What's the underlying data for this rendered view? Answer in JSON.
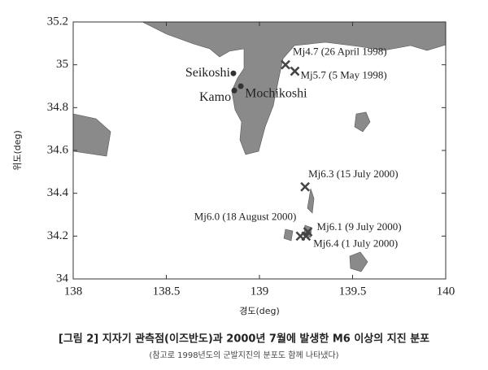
{
  "chart_data": {
    "type": "scatter",
    "title": "[그림 2] 지자기 관측점(이즈반도)과 2000년 7월에 발생한 M6 이상의 지진 분포",
    "subtitle": "(참고로 1998년도의 군발지진의 분포도 함께 나타냈다)",
    "xlabel": "경도(deg)",
    "ylabel": "위도(deg)",
    "xlim": [
      138,
      140
    ],
    "ylim": [
      34,
      35.2
    ],
    "xticks": [
      138,
      138.5,
      139,
      139.5,
      140
    ],
    "yticks": [
      34,
      34.2,
      34.4,
      34.6,
      34.8,
      35,
      35.2
    ],
    "points": [
      {
        "label": "Seikoshi",
        "x": 138.86,
        "y": 34.96,
        "marker": "dot"
      },
      {
        "label": "Kamo",
        "x": 138.865,
        "y": 34.88,
        "marker": "dot"
      },
      {
        "label": "Mochikoshi",
        "x": 138.9,
        "y": 34.9,
        "marker": "dot"
      },
      {
        "label": "Mj4.7  (26 April 1998)",
        "x": 139.14,
        "y": 35.0,
        "marker": "x"
      },
      {
        "label": "Mj5.7  (5 May 1998)",
        "x": 139.19,
        "y": 34.97,
        "marker": "x"
      },
      {
        "label": "Mj6.3  (15 July 2000)",
        "x": 139.245,
        "y": 34.43,
        "marker": "x"
      },
      {
        "label": "Mj6.0  (18 August 2000)",
        "x": 139.22,
        "y": 34.2,
        "marker": "x"
      },
      {
        "label": "Mj6.1  (9 July 2000)",
        "x": 139.26,
        "y": 34.22,
        "marker": "x"
      },
      {
        "label": "Mj6.4  (1 July 2000)",
        "x": 139.25,
        "y": 34.2,
        "marker": "x"
      }
    ]
  }
}
